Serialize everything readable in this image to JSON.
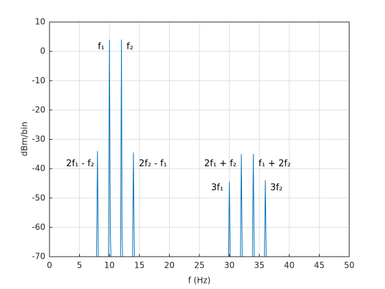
{
  "chart_data": {
    "type": "line",
    "xlabel": "f (Hz)",
    "ylabel": "dBm/bin",
    "x": [
      7.85,
      8,
      8.15,
      9,
      9.85,
      10,
      10.15,
      10.25,
      11,
      11.85,
      12,
      12.1,
      12.2,
      13,
      13.85,
      14,
      14.15,
      22,
      29.85,
      30,
      30.15,
      31,
      31.85,
      32,
      32.15,
      33,
      33.85,
      34,
      34.15,
      35,
      35.85,
      36,
      36.15
    ],
    "values": [
      -70,
      -34,
      -70,
      null,
      -70,
      4,
      -62,
      -70,
      null,
      -70,
      4,
      -63,
      -70,
      null,
      -70,
      -34.5,
      -70,
      null,
      -70,
      -44.5,
      -70,
      null,
      -70,
      -35,
      -70,
      null,
      -70,
      -35,
      -70,
      null,
      -70,
      -44,
      -70
    ],
    "color": "#0072bd",
    "xlim": [
      0,
      50
    ],
    "xticks": [
      0,
      5,
      10,
      15,
      20,
      25,
      30,
      35,
      40,
      45,
      50
    ],
    "ylim": [
      -70,
      10
    ],
    "yticks": [
      -70,
      -60,
      -50,
      -40,
      -30,
      -20,
      -10,
      0,
      10
    ],
    "grid": true,
    "annotations": [
      "f₁",
      "f₂",
      "2f₁ - f₂",
      "2f₂ - f₁",
      "2f₁ + f₂",
      "f₁ + 2f₂",
      "3f₁",
      "3f₂"
    ]
  }
}
